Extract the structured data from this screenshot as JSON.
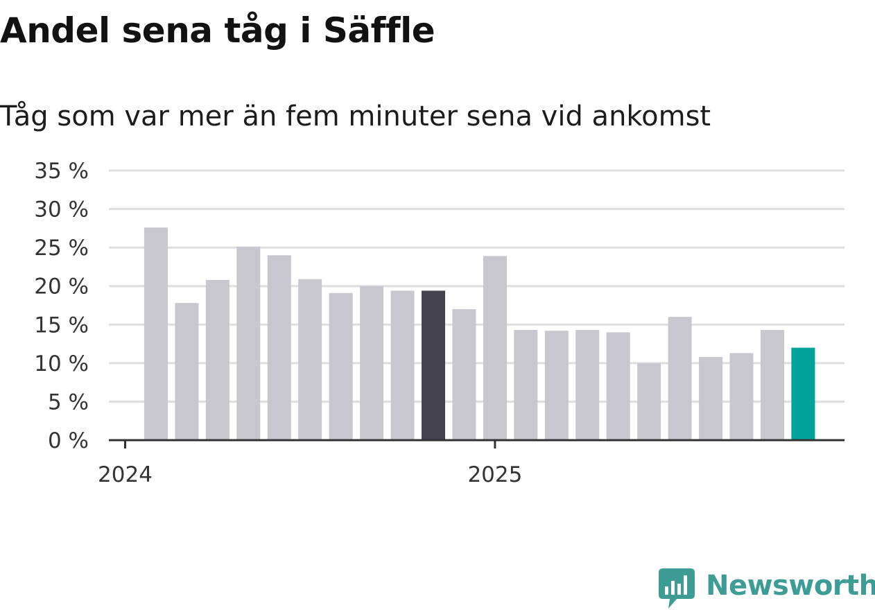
{
  "title": "Andel sena tåg i Säffle",
  "subtitle": "Tåg som var mer än fem minuter sena vid ankomst",
  "brand": {
    "name": "Newsworthy",
    "color": "#3d9c93",
    "icon": "chat-bubble-bar-chart-icon"
  },
  "colors": {
    "default_bar": "#c8c7cf",
    "highlight_bar": "#43424e",
    "latest_bar": "#00a39a",
    "grid": "#dedede",
    "axis": "#333333"
  },
  "chart_data": {
    "type": "bar",
    "title": "Andel sena tåg i Säffle",
    "subtitle": "Tåg som var mer än fem minuter sena vid ankomst",
    "xlabel": "",
    "ylabel": "",
    "ylim": [
      0,
      35
    ],
    "y_ticks": [
      0,
      5,
      10,
      15,
      20,
      25,
      30,
      35
    ],
    "y_tick_labels": [
      "0 %",
      "5 %",
      "10 %",
      "15 %",
      "20 %",
      "25 %",
      "30 %",
      "35 %"
    ],
    "x_tick_labels": [
      {
        "label": "2024",
        "at": "2024-01"
      },
      {
        "label": "2025",
        "at": "2025-01"
      }
    ],
    "grid": true,
    "legend": "none",
    "categories": [
      "2024-02",
      "2024-03",
      "2024-04",
      "2024-05",
      "2024-06",
      "2024-07",
      "2024-08",
      "2024-09",
      "2024-10",
      "2024-11",
      "2024-12",
      "2025-01",
      "2025-02",
      "2025-03",
      "2025-04",
      "2025-05",
      "2025-06",
      "2025-07",
      "2025-08",
      "2025-09",
      "2025-10",
      "2025-11",
      "2025-12"
    ],
    "values": [
      27.6,
      17.8,
      20.8,
      25.1,
      24.0,
      20.9,
      19.1,
      20.0,
      19.4,
      19.4,
      17.0,
      23.9,
      14.3,
      14.2,
      14.3,
      14.0,
      10.0,
      16.0,
      10.8,
      11.3,
      14.3,
      12.0,
      null
    ],
    "highlight_index": 9,
    "latest_index": 21
  }
}
